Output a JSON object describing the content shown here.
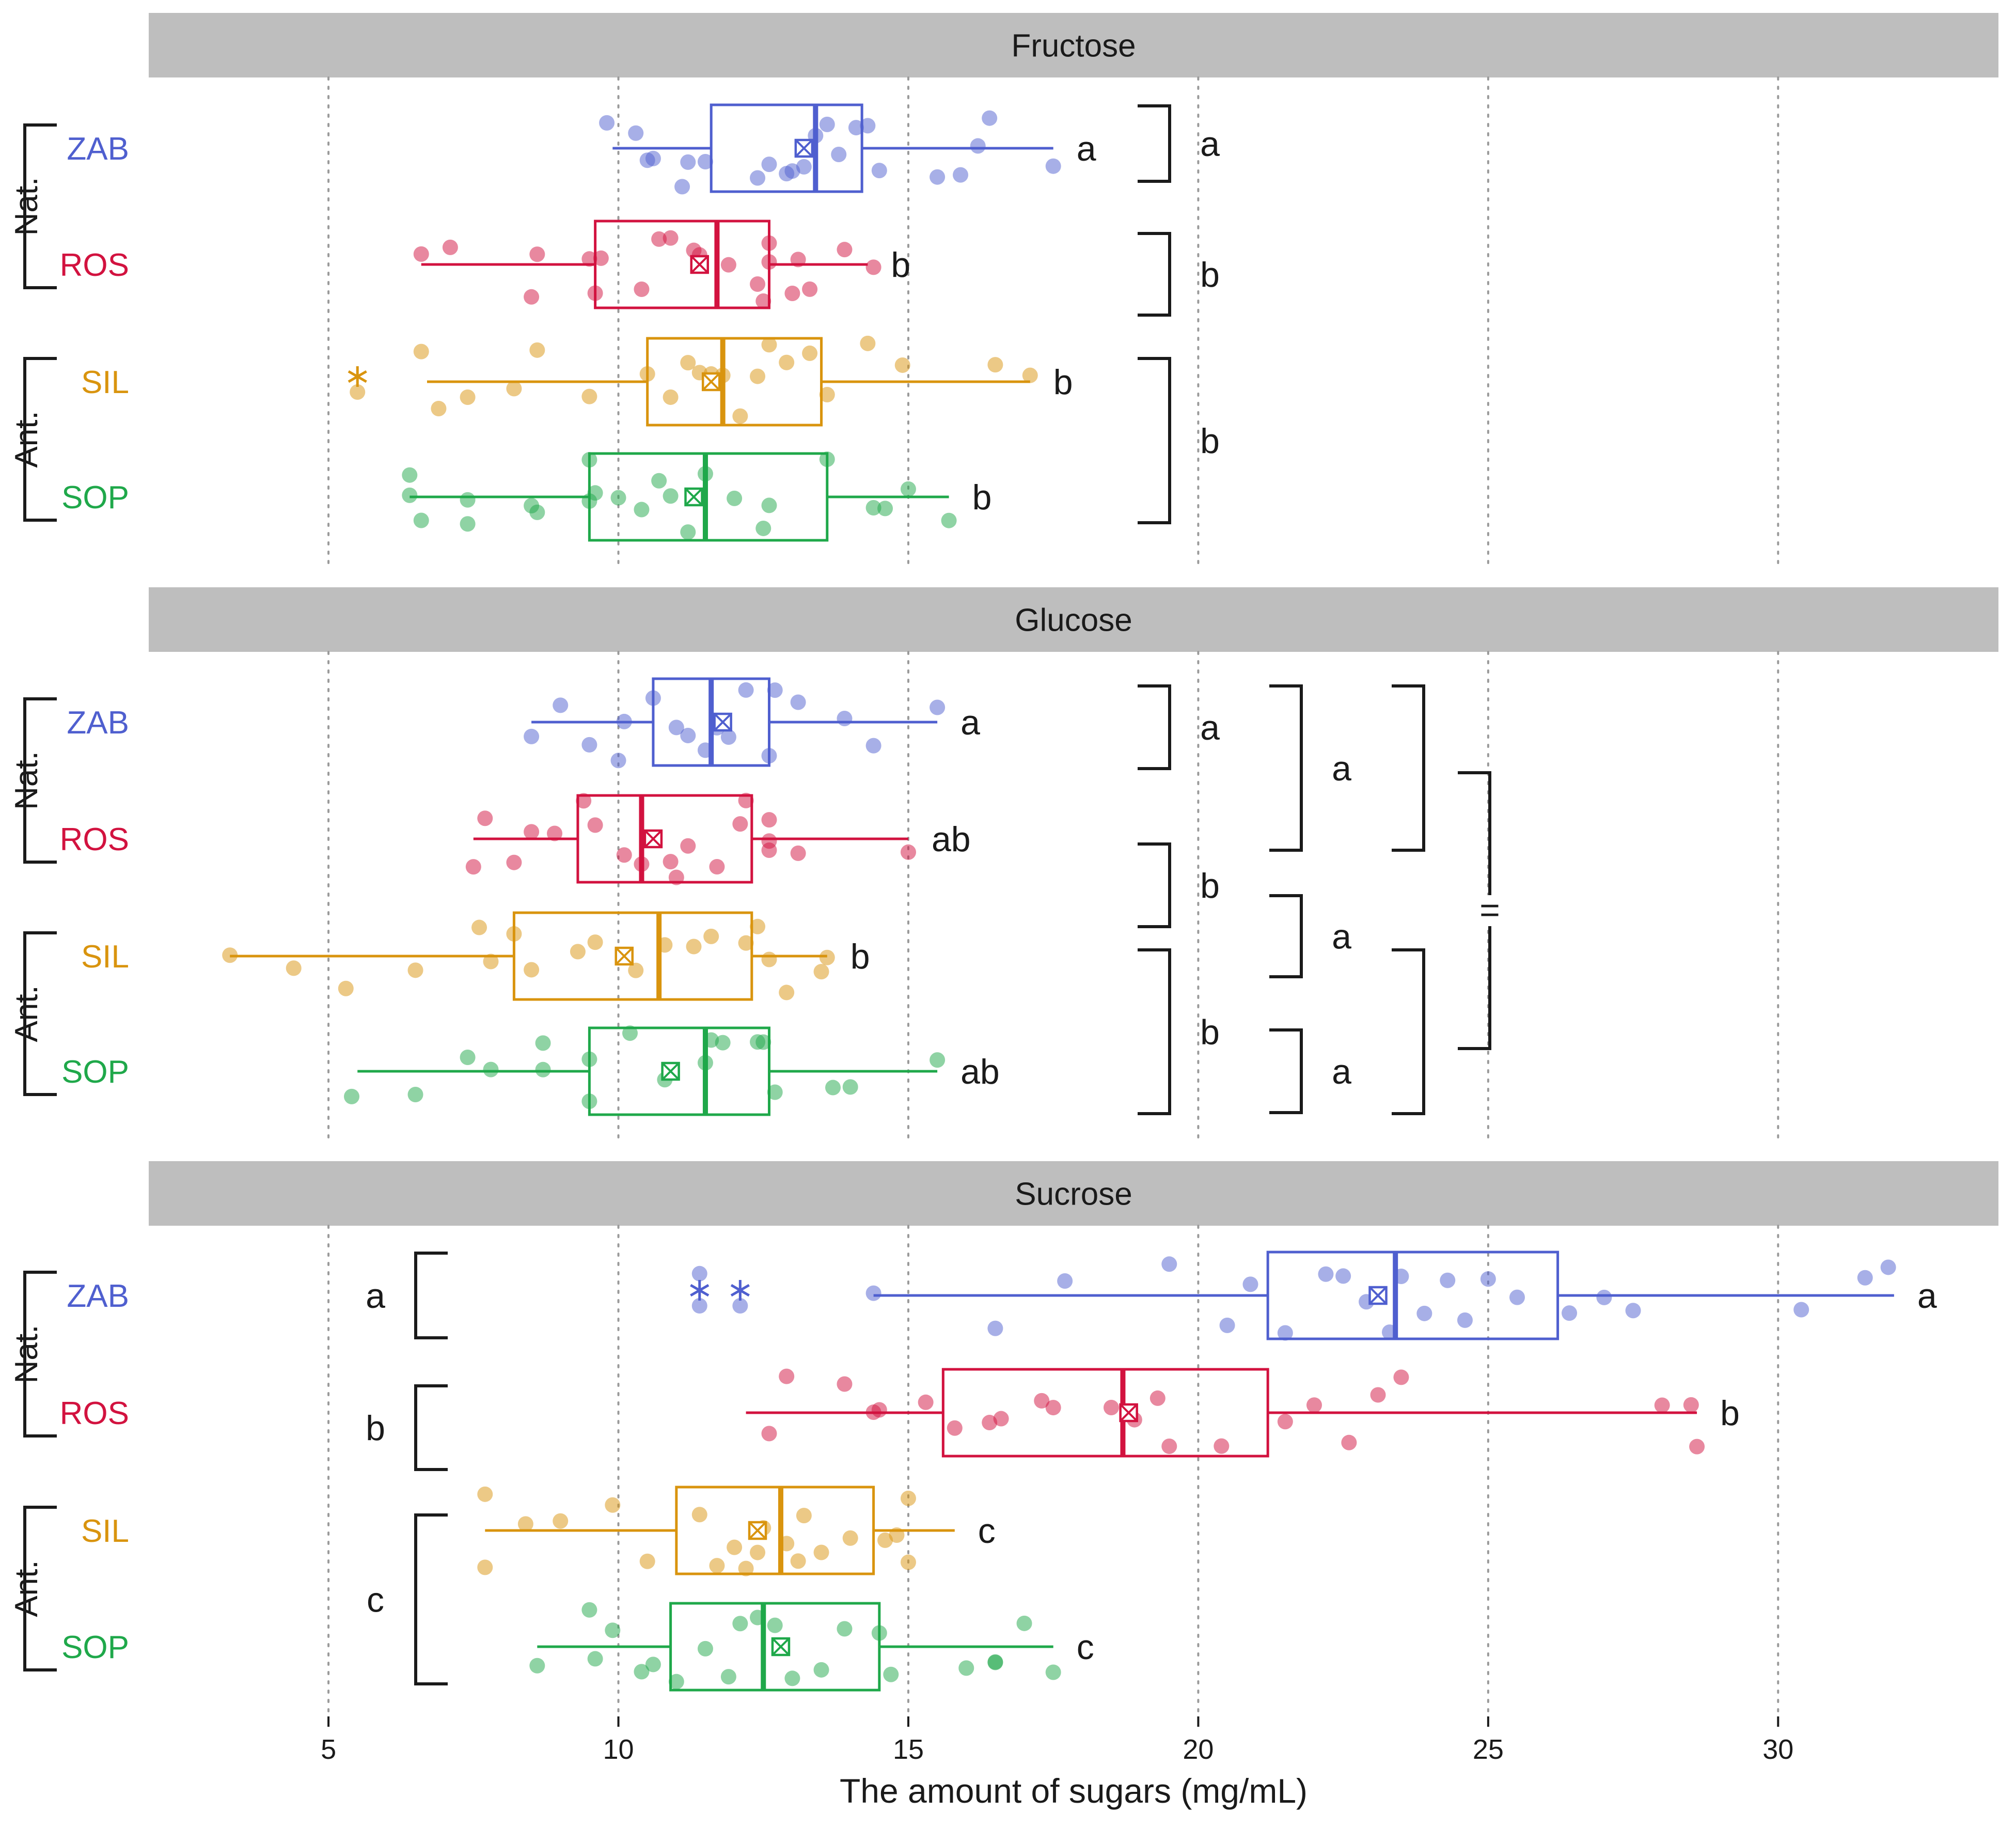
{
  "colors": {
    "ZAB": "#4F5FCF",
    "ROS": "#D2123F",
    "SIL": "#D9940E",
    "SOP": "#1FA84A",
    "strip": "#BEBEBE",
    "grid": "#9a9a9a",
    "ink": "#1a1a1a"
  },
  "chart_data": {
    "type": "box",
    "xlabel": "The amount of sugars (mg/mL)",
    "xlim": [
      1.9,
      33.8
    ],
    "xticks": [
      5,
      10,
      15,
      20,
      25,
      30
    ],
    "xtick_labels": [
      "5",
      "10",
      "15",
      "20",
      "25",
      "30"
    ],
    "categories": [
      "ZAB",
      "ROS",
      "SIL",
      "SOP"
    ],
    "groups": [
      {
        "label": "Nat.",
        "members": [
          "ZAB",
          "ROS"
        ]
      },
      {
        "label": "Ant.",
        "members": [
          "SIL",
          "SOP"
        ]
      }
    ],
    "panels": [
      {
        "title": "Fructose",
        "series": [
          {
            "name": "ZAB",
            "q1": 11.6,
            "median": 13.4,
            "q3": 14.2,
            "whisker_low": 9.9,
            "whisker_high": 17.5,
            "mean": 13.2,
            "letter": "a",
            "points": [
              10.5,
              10.3,
              10.6,
              11.1,
              11.2,
              11.5,
              9.8,
              12.4,
              12.6,
              12.9,
              13.2,
              13.4,
              13.0,
              13.6,
              13.8,
              14.1,
              14.3,
              14.5,
              15.5,
              15.9,
              16.4,
              16.2,
              17.5
            ]
          },
          {
            "name": "ROS",
            "q1": 9.6,
            "median": 11.7,
            "q3": 12.6,
            "whisker_low": 6.6,
            "whisker_high": 14.3,
            "mean": 11.4,
            "letter": "b",
            "points": [
              6.6,
              7.1,
              8.6,
              8.5,
              9.6,
              9.7,
              9.5,
              10.4,
              10.7,
              10.9,
              11.3,
              11.4,
              11.9,
              12.5,
              12.6,
              12.4,
              12.6,
              13.1,
              13.0,
              13.3,
              13.9,
              14.4
            ]
          },
          {
            "name": "SIL",
            "q1": 10.5,
            "median": 11.8,
            "q3": 13.5,
            "whisker_low": 6.7,
            "whisker_high": 17.1,
            "mean": 11.6,
            "letter": "b",
            "points": [
              6.9,
              7.4,
              6.6,
              8.2,
              8.6,
              9.5,
              10.5,
              10.9,
              11.2,
              11.4,
              11.6,
              11.8,
              12.1,
              12.4,
              12.6,
              12.9,
              13.3,
              13.6,
              14.3,
              14.9,
              16.5,
              17.1
            ]
          },
          {
            "name": "SOP",
            "q1": 9.5,
            "median": 11.5,
            "q3": 13.6,
            "whisker_low": 6.4,
            "whisker_high": 15.7,
            "mean": 11.3,
            "letter": "b",
            "points": [
              6.4,
              6.6,
              6.4,
              7.4,
              7.4,
              8.5,
              8.6,
              9.5,
              9.5,
              9.6,
              10.0,
              10.4,
              10.7,
              10.9,
              11.2,
              11.5,
              12.0,
              12.5,
              12.6,
              13.6,
              14.4,
              14.6,
              15.0,
              15.7
            ]
          }
        ],
        "outliers": [
          {
            "series": "SIL",
            "value": 5.5
          }
        ],
        "brackets": [
          {
            "from": "ZAB",
            "to": "ZAB",
            "label": "a"
          },
          {
            "from": "ROS",
            "to": "ROS",
            "label": "b"
          },
          {
            "from": "SIL",
            "to": "SOP",
            "label": "b"
          }
        ]
      },
      {
        "title": "Glucose",
        "series": [
          {
            "name": "ZAB",
            "q1": 10.6,
            "median": 11.6,
            "q3": 12.6,
            "whisker_low": 8.5,
            "whisker_high": 15.5,
            "mean": 11.8,
            "letter": "a",
            "points": [
              8.5,
              9.0,
              9.5,
              10.0,
              10.1,
              10.6,
              11.0,
              11.2,
              11.5,
              11.7,
              11.9,
              12.2,
              12.6,
              12.7,
              13.1,
              13.9,
              14.4,
              15.5
            ]
          },
          {
            "name": "ROS",
            "q1": 9.3,
            "median": 10.4,
            "q3": 12.3,
            "whisker_low": 7.5,
            "whisker_high": 15.0,
            "mean": 10.6,
            "letter": "ab",
            "points": [
              7.5,
              7.7,
              8.2,
              8.5,
              8.9,
              9.4,
              9.6,
              10.1,
              10.4,
              10.9,
              11.0,
              11.2,
              11.7,
              12.1,
              12.2,
              12.6,
              12.6,
              12.6,
              13.1,
              15.0
            ]
          },
          {
            "name": "SIL",
            "q1": 8.2,
            "median": 10.7,
            "q3": 12.3,
            "whisker_low": 3.3,
            "whisker_high": 13.6,
            "mean": 10.1,
            "letter": "b",
            "points": [
              3.3,
              4.4,
              5.3,
              6.5,
              7.6,
              7.8,
              8.2,
              8.5,
              9.3,
              9.6,
              10.3,
              10.8,
              11.3,
              11.6,
              12.2,
              12.4,
              12.6,
              12.9,
              13.5,
              13.6
            ]
          },
          {
            "name": "SOP",
            "q1": 9.5,
            "median": 11.5,
            "q3": 12.6,
            "whisker_low": 5.5,
            "whisker_high": 15.5,
            "mean": 10.9,
            "letter": "ab",
            "points": [
              5.4,
              6.5,
              7.4,
              7.8,
              8.7,
              8.7,
              9.5,
              9.5,
              10.2,
              10.8,
              11.5,
              11.6,
              11.8,
              12.4,
              12.5,
              12.7,
              13.7,
              14.0,
              15.5
            ]
          }
        ],
        "outliers": [],
        "brackets": [
          {
            "from": "ZAB",
            "to": "ZAB",
            "label": "a"
          },
          {
            "from": "ROS",
            "to": "ROS",
            "label": "b"
          },
          {
            "from": "SIL",
            "to": "SOP",
            "label": "b"
          },
          {
            "from": "ZAB",
            "to": "ROS",
            "label": "a"
          },
          {
            "from": "SIL",
            "to": "SIL",
            "label": "a"
          },
          {
            "from": "SOP",
            "to": "SOP",
            "label": "a"
          },
          {
            "from": "ZAB",
            "to": "ROS",
            "label": ""
          },
          {
            "from": "SIL",
            "to": "SOP",
            "label": ""
          },
          {
            "from": "Nat.",
            "to": "Ant.",
            "label": "="
          }
        ]
      },
      {
        "title": "Sucrose",
        "series": [
          {
            "name": "ZAB",
            "q1": 21.2,
            "median": 23.4,
            "q3": 26.2,
            "whisker_low": 14.4,
            "whisker_high": 32.0,
            "mean": 23.1,
            "letter": "a",
            "points": [
              11.4,
              14.4,
              16.5,
              17.7,
              19.5,
              20.5,
              20.9,
              21.5,
              22.2,
              22.5,
              22.9,
              23.3,
              23.5,
              23.9,
              24.3,
              24.6,
              25.0,
              25.5,
              26.4,
              27.0,
              27.5,
              30.4,
              31.5,
              31.9
            ]
          },
          {
            "name": "ROS",
            "q1": 15.6,
            "median": 18.7,
            "q3": 21.2,
            "whisker_low": 12.2,
            "whisker_high": 28.6,
            "mean": 18.8,
            "letter": "b",
            "points": [
              12.6,
              12.9,
              13.9,
              14.4,
              14.5,
              15.3,
              15.8,
              16.4,
              16.6,
              17.3,
              17.5,
              18.5,
              18.9,
              19.3,
              19.5,
              20.4,
              21.5,
              22.0,
              22.6,
              23.1,
              23.5,
              28.0,
              28.5,
              28.6
            ]
          },
          {
            "name": "SIL",
            "q1": 11.0,
            "median": 12.8,
            "q3": 14.4,
            "whisker_low": 7.7,
            "whisker_high": 15.8,
            "mean": 12.4,
            "letter": "c",
            "points": [
              7.7,
              7.7,
              8.4,
              9.0,
              9.9,
              10.5,
              11.4,
              11.7,
              12.0,
              12.2,
              12.4,
              12.5,
              12.9,
              13.1,
              13.2,
              13.5,
              14.0,
              14.6,
              14.8,
              15.0,
              15.0
            ]
          },
          {
            "name": "SOP",
            "q1": 10.9,
            "median": 12.5,
            "q3": 14.5,
            "whisker_low": 8.6,
            "whisker_high": 17.5,
            "mean": 12.8,
            "letter": "c",
            "points": [
              8.6,
              9.5,
              9.6,
              9.9,
              10.4,
              10.6,
              11.0,
              11.5,
              11.9,
              12.1,
              12.4,
              12.7,
              13.0,
              13.5,
              13.9,
              14.5,
              14.7,
              16.0,
              16.5,
              16.5,
              17.0,
              17.5
            ]
          }
        ],
        "outliers": [
          {
            "series": "ZAB",
            "value": 11.4
          },
          {
            "series": "ZAB",
            "value": 12.1
          }
        ],
        "brackets": [
          {
            "from": "ZAB",
            "to": "ZAB",
            "label": "a"
          },
          {
            "from": "ROS",
            "to": "ROS",
            "label": "b"
          },
          {
            "from": "SIL",
            "to": "SOP",
            "label": "c"
          }
        ]
      }
    ]
  }
}
